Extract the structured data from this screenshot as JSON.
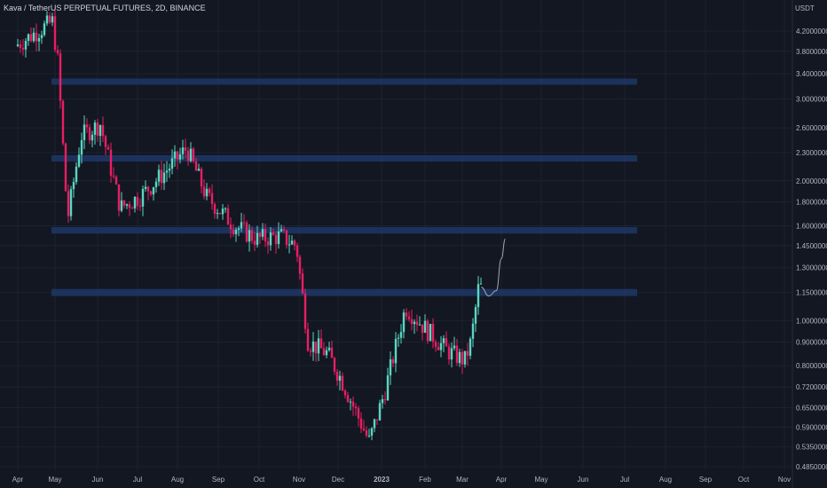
{
  "chart_data": {
    "type": "candlestick",
    "title": "Kava / TetherUS PERPETUAL FUTURES, 2D, BINANCE",
    "currency": "USDT",
    "y_scale": "log",
    "ylim": [
      0.485,
      4.6
    ],
    "price_ticks": [
      "4.20000000",
      "3.80000000",
      "3.40000000",
      "3.00000000",
      "2.60000000",
      "2.30000000",
      "2.00000000",
      "1.80000000",
      "1.60000000",
      "1.45000000",
      "1.30000000",
      "1.15000000",
      "1.00000000",
      "0.90000000",
      "0.80000000",
      "0.72000000",
      "0.65000000",
      "0.59000000",
      "0.53500000",
      "0.48500000"
    ],
    "time_ticks": [
      "Apr",
      "May",
      "Jun",
      "Jul",
      "Aug",
      "Sep",
      "Oct",
      "Nov",
      "Dec",
      "2023",
      "Feb",
      "Mar",
      "Apr",
      "May",
      "Jun",
      "Jul",
      "Aug",
      "Sep",
      "Oct",
      "Nov"
    ],
    "zones": [
      {
        "low": 3.22,
        "high": 3.32
      },
      {
        "low": 2.2,
        "high": 2.27
      },
      {
        "low": 1.54,
        "high": 1.59
      },
      {
        "low": 1.13,
        "high": 1.17
      }
    ],
    "price_path": [
      {
        "date": "2022-04-01",
        "price": 3.9
      },
      {
        "date": "2022-05-01",
        "price": 4.4
      },
      {
        "date": "2022-05-05",
        "price": 3.6
      },
      {
        "date": "2022-05-12",
        "price": 1.65
      },
      {
        "date": "2022-05-22",
        "price": 2.5
      },
      {
        "date": "2022-06-05",
        "price": 2.65
      },
      {
        "date": "2022-06-20",
        "price": 1.75
      },
      {
        "date": "2022-07-05",
        "price": 1.85
      },
      {
        "date": "2022-07-25",
        "price": 2.1
      },
      {
        "date": "2022-08-10",
        "price": 2.35
      },
      {
        "date": "2022-08-25",
        "price": 1.85
      },
      {
        "date": "2022-09-15",
        "price": 1.6
      },
      {
        "date": "2022-10-01",
        "price": 1.5
      },
      {
        "date": "2022-10-20",
        "price": 1.52
      },
      {
        "date": "2022-11-01",
        "price": 1.45
      },
      {
        "date": "2022-11-10",
        "price": 0.9
      },
      {
        "date": "2022-11-25",
        "price": 0.85
      },
      {
        "date": "2022-12-05",
        "price": 0.75
      },
      {
        "date": "2022-12-25",
        "price": 0.55
      },
      {
        "date": "2023-01-05",
        "price": 0.7
      },
      {
        "date": "2023-01-20",
        "price": 1.07
      },
      {
        "date": "2023-02-05",
        "price": 0.95
      },
      {
        "date": "2023-02-20",
        "price": 0.86
      },
      {
        "date": "2023-03-05",
        "price": 0.82
      },
      {
        "date": "2023-03-10",
        "price": 0.9
      },
      {
        "date": "2023-03-16",
        "price": 1.18
      }
    ],
    "projection": [
      {
        "date": "2023-03-16",
        "price": 1.18
      },
      {
        "date": "2023-03-22",
        "price": 1.13
      },
      {
        "date": "2023-03-28",
        "price": 1.16
      },
      {
        "date": "2023-04-01",
        "price": 1.36
      },
      {
        "date": "2023-04-04",
        "price": 1.5
      }
    ],
    "colors": {
      "up": "#26a69a",
      "down": "#ef5350",
      "up_candle": "#5ad7c1",
      "down_candle": "#e91e63",
      "zone": "#1e3766",
      "projection": "#a8a8a8",
      "background": "#131722",
      "grid": "#1d2230"
    }
  }
}
